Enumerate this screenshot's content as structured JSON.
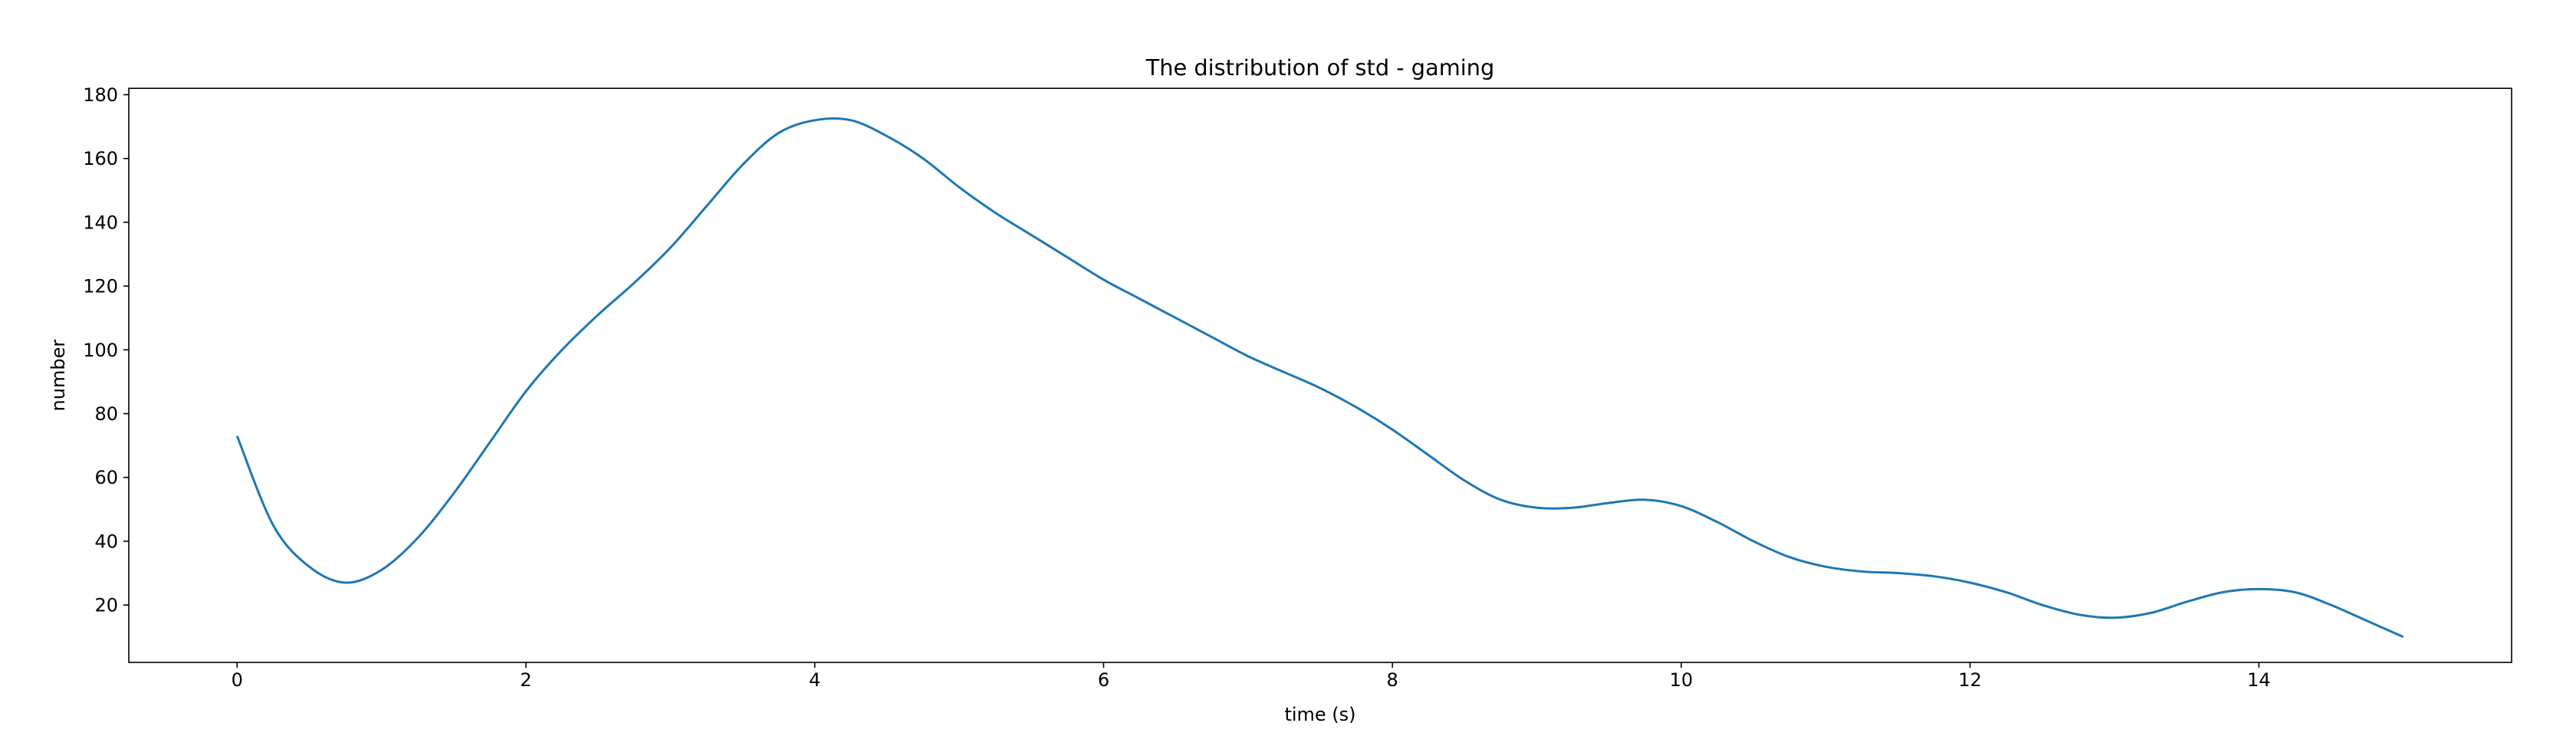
{
  "chart_data": {
    "type": "line",
    "title": "The distribution of std - gaming",
    "xlabel": "time (s)",
    "ylabel": "number",
    "xlim": [
      -0.75,
      15.75
    ],
    "ylim": [
      2,
      182
    ],
    "xticks": [
      0,
      2,
      4,
      6,
      8,
      10,
      12,
      14
    ],
    "yticks": [
      20,
      40,
      60,
      80,
      100,
      120,
      140,
      160,
      180
    ],
    "grid": false,
    "line_color": "#1f77b4",
    "series": [
      {
        "x": [
          0.0,
          0.25,
          0.5,
          0.75,
          1.0,
          1.25,
          1.5,
          1.75,
          2.0,
          2.25,
          2.5,
          2.75,
          3.0,
          3.25,
          3.5,
          3.75,
          4.0,
          4.25,
          4.5,
          4.75,
          5.0,
          5.25,
          5.5,
          5.75,
          6.0,
          6.25,
          6.5,
          6.75,
          7.0,
          7.25,
          7.5,
          7.75,
          8.0,
          8.25,
          8.5,
          8.75,
          9.0,
          9.25,
          9.5,
          9.75,
          10.0,
          10.25,
          10.5,
          10.75,
          11.0,
          11.25,
          11.5,
          11.75,
          12.0,
          12.25,
          12.5,
          12.75,
          13.0,
          13.25,
          13.5,
          13.75,
          14.0,
          14.25,
          14.5,
          14.75,
          15.0
        ],
        "values": [
          73,
          45,
          32,
          27,
          31,
          41,
          55,
          71,
          87,
          100,
          111,
          121,
          132,
          145,
          158,
          168,
          172,
          172,
          167,
          160,
          151,
          143,
          136,
          129,
          122,
          116,
          110,
          104,
          98,
          93,
          88,
          82,
          75,
          67,
          59,
          53,
          50.5,
          50.5,
          52,
          53,
          51,
          46,
          40,
          35,
          32,
          30.5,
          30,
          29,
          27,
          24,
          20,
          17,
          16,
          17.5,
          21,
          24,
          25,
          24,
          20,
          15,
          10
        ]
      }
    ]
  }
}
